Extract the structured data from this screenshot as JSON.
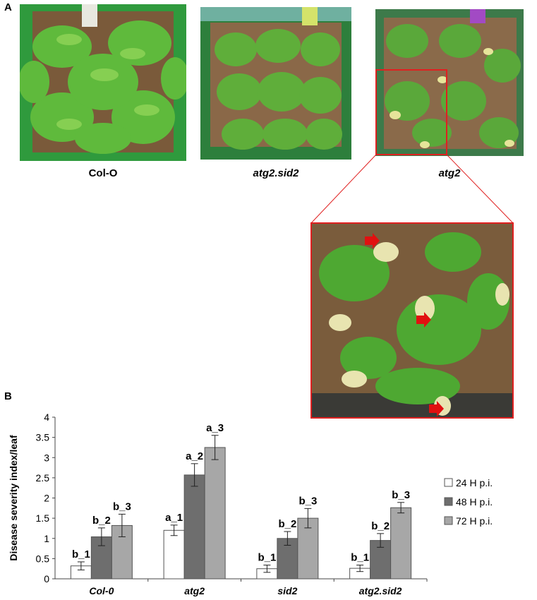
{
  "panel_a": {
    "label": "A",
    "photos": [
      {
        "caption": "Col-O",
        "italic": false
      },
      {
        "caption": "atg2.sid2",
        "italic": true
      },
      {
        "caption": "atg2",
        "italic": true
      }
    ]
  },
  "panel_b": {
    "label": "B"
  },
  "colors": {
    "series": [
      "#ffffff",
      "#6e6e6e",
      "#a7a7a7"
    ],
    "inset_border": "#e02020",
    "arrow": "#e11010"
  },
  "chart_data": {
    "type": "bar",
    "categories": [
      "Col-0",
      "atg2",
      "sid2",
      "atg2.sid2"
    ],
    "ylabel": "Disease severity index/leaf",
    "xlabel": "",
    "ylim": [
      0,
      4
    ],
    "yticks": [
      "0",
      "0.5",
      "1",
      "1.5",
      "2",
      "2.5",
      "3",
      "3.5",
      "4"
    ],
    "grid": false,
    "legend": "right",
    "series": [
      {
        "name": "24 H p.i.",
        "values": [
          0.32,
          1.2,
          0.25,
          0.26
        ],
        "errors": [
          0.1,
          0.13,
          0.09,
          0.08
        ],
        "labels": [
          "b_1",
          "a_1",
          "b_1",
          "b_1"
        ]
      },
      {
        "name": "48 H p.i.",
        "values": [
          1.04,
          2.57,
          1.0,
          0.95
        ],
        "errors": [
          0.22,
          0.28,
          0.17,
          0.17
        ],
        "labels": [
          "b_2",
          "a_2",
          "b_2",
          "b_2"
        ]
      },
      {
        "name": "72 H p.i.",
        "values": [
          1.32,
          3.25,
          1.5,
          1.76
        ],
        "errors": [
          0.28,
          0.3,
          0.24,
          0.13
        ],
        "labels": [
          "b_3",
          "a_3",
          "b_3",
          "b_3"
        ]
      }
    ]
  }
}
